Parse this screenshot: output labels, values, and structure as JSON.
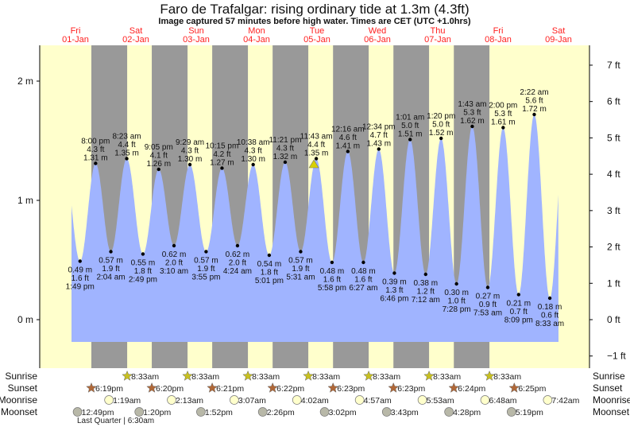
{
  "chart_data": {
    "type": "area",
    "title": "Faro de Trafalgar: rising  ordinary tide at 1.3m (4.3ft)",
    "subtitle": "Image captured 57 minutes before high water. Times are CET (UTC +1.0hrs)",
    "current_marker": {
      "day": "05-Jan",
      "time": "10:46 am",
      "m": 1.3
    },
    "left_axis": {
      "unit": "m",
      "ticks": [
        "0 m",
        "1 m",
        "2 m"
      ],
      "tick_values": [
        0,
        1,
        2
      ]
    },
    "right_axis": {
      "unit": "ft",
      "ticks": [
        "−1 ft",
        "0 ft",
        "1 ft",
        "2 ft",
        "3 ft",
        "4 ft",
        "5 ft",
        "6 ft",
        "7 ft"
      ],
      "tick_values": [
        -1,
        0,
        1,
        2,
        3,
        4,
        5,
        6,
        7
      ]
    },
    "days": [
      {
        "dow": "Fri",
        "date": "01-Jan"
      },
      {
        "dow": "Sat",
        "date": "02-Jan"
      },
      {
        "dow": "Sun",
        "date": "03-Jan"
      },
      {
        "dow": "Mon",
        "date": "04-Jan"
      },
      {
        "dow": "Tue",
        "date": "05-Jan"
      },
      {
        "dow": "Wed",
        "date": "06-Jan"
      },
      {
        "dow": "Thu",
        "date": "07-Jan"
      },
      {
        "dow": "Fri",
        "date": "08-Jan"
      },
      {
        "dow": "Sat",
        "date": "09-Jan"
      }
    ],
    "tides": [
      {
        "day": "01-Jan",
        "time": "1:49 pm",
        "type": "low",
        "m": "0.49 m",
        "ft": "1.6 ft",
        "v": 0.49
      },
      {
        "day": "01-Jan",
        "time": "8:00 pm",
        "type": "high",
        "m": "1.31 m",
        "ft": "4.3 ft",
        "v": 1.31
      },
      {
        "day": "02-Jan",
        "time": "2:04 am",
        "type": "low",
        "m": "0.57 m",
        "ft": "1.9 ft",
        "v": 0.57
      },
      {
        "day": "02-Jan",
        "time": "8:23 am",
        "type": "high",
        "m": "1.35 m",
        "ft": "4.4 ft",
        "v": 1.35
      },
      {
        "day": "02-Jan",
        "time": "2:49 pm",
        "type": "low",
        "m": "0.55 m",
        "ft": "1.8 ft",
        "v": 0.55
      },
      {
        "day": "02-Jan",
        "time": "9:05 pm",
        "type": "high",
        "m": "1.26 m",
        "ft": "4.1 ft",
        "v": 1.26
      },
      {
        "day": "03-Jan",
        "time": "3:10 am",
        "type": "low",
        "m": "0.62 m",
        "ft": "2.0 ft",
        "v": 0.62
      },
      {
        "day": "03-Jan",
        "time": "9:29 am",
        "type": "high",
        "m": "1.30 m",
        "ft": "4.3 ft",
        "v": 1.3
      },
      {
        "day": "03-Jan",
        "time": "3:55 pm",
        "type": "low",
        "m": "0.57 m",
        "ft": "1.9 ft",
        "v": 0.57
      },
      {
        "day": "03-Jan",
        "time": "10:15 pm",
        "type": "high",
        "m": "1.27 m",
        "ft": "4.2 ft",
        "v": 1.27
      },
      {
        "day": "04-Jan",
        "time": "4:24 am",
        "type": "low",
        "m": "0.62 m",
        "ft": "2.0 ft",
        "v": 0.62
      },
      {
        "day": "04-Jan",
        "time": "10:38 am",
        "type": "high",
        "m": "1.30 m",
        "ft": "4.3 ft",
        "v": 1.3
      },
      {
        "day": "04-Jan",
        "time": "5:01 pm",
        "type": "low",
        "m": "0.54 m",
        "ft": "1.8 ft",
        "v": 0.54
      },
      {
        "day": "04-Jan",
        "time": "11:21 pm",
        "type": "high",
        "m": "1.32 m",
        "ft": "4.3 ft",
        "v": 1.32
      },
      {
        "day": "05-Jan",
        "time": "5:31 am",
        "type": "low",
        "m": "0.57 m",
        "ft": "1.9 ft",
        "v": 0.57
      },
      {
        "day": "05-Jan",
        "time": "11:43 am",
        "type": "high",
        "m": "1.35 m",
        "ft": "4.4 ft",
        "v": 1.35
      },
      {
        "day": "05-Jan",
        "time": "5:58 pm",
        "type": "low",
        "m": "0.48 m",
        "ft": "1.6 ft",
        "v": 0.48
      },
      {
        "day": "06-Jan",
        "time": "12:16 am",
        "type": "high",
        "m": "1.41 m",
        "ft": "4.6 ft",
        "v": 1.41
      },
      {
        "day": "06-Jan",
        "time": "6:27 am",
        "type": "low",
        "m": "0.48 m",
        "ft": "1.6 ft",
        "v": 0.48
      },
      {
        "day": "06-Jan",
        "time": "12:34 pm",
        "type": "high",
        "m": "1.43 m",
        "ft": "4.7 ft",
        "v": 1.43
      },
      {
        "day": "06-Jan",
        "time": "6:46 pm",
        "type": "low",
        "m": "0.39 m",
        "ft": "1.3 ft",
        "v": 0.39
      },
      {
        "day": "07-Jan",
        "time": "1:01 am",
        "type": "high",
        "m": "1.51 m",
        "ft": "5.0 ft",
        "v": 1.51
      },
      {
        "day": "07-Jan",
        "time": "7:12 am",
        "type": "low",
        "m": "0.38 m",
        "ft": "1.2 ft",
        "v": 0.38
      },
      {
        "day": "07-Jan",
        "time": "1:20 pm",
        "type": "high",
        "m": "1.52 m",
        "ft": "5.0 ft",
        "v": 1.52
      },
      {
        "day": "07-Jan",
        "time": "7:28 pm",
        "type": "low",
        "m": "0.30 m",
        "ft": "1.0 ft",
        "v": 0.3
      },
      {
        "day": "08-Jan",
        "time": "1:43 am",
        "type": "high",
        "m": "1.62 m",
        "ft": "5.3 ft",
        "v": 1.62
      },
      {
        "day": "08-Jan",
        "time": "7:53 am",
        "type": "low",
        "m": "0.27 m",
        "ft": "0.9 ft",
        "v": 0.27
      },
      {
        "day": "08-Jan",
        "time": "2:00 pm",
        "type": "high",
        "m": "1.61 m",
        "ft": "5.3 ft",
        "v": 1.61
      },
      {
        "day": "08-Jan",
        "time": "8:09 pm",
        "type": "low",
        "m": "0.21 m",
        "ft": "0.7 ft",
        "v": 0.21
      },
      {
        "day": "09-Jan",
        "time": "2:22 am",
        "type": "high",
        "m": "1.72 m",
        "ft": "5.6 ft",
        "v": 1.72
      },
      {
        "day": "09-Jan",
        "time": "8:33 am",
        "type": "low",
        "m": "0.18 m",
        "ft": "0.6 ft",
        "v": 0.18
      }
    ],
    "astro": {
      "labels": {
        "sunrise": "Sunrise",
        "sunset": "Sunset",
        "moonrise": "Moonrise",
        "moonset": "Moonset"
      },
      "sunrise": [
        {
          "day": "02-Jan",
          "time": "8:33am"
        },
        {
          "day": "03-Jan",
          "time": "8:33am"
        },
        {
          "day": "04-Jan",
          "time": "8:33am"
        },
        {
          "day": "05-Jan",
          "time": "8:33am"
        },
        {
          "day": "06-Jan",
          "time": "8:33am"
        },
        {
          "day": "07-Jan",
          "time": "8:33am"
        },
        {
          "day": "08-Jan",
          "time": "8:33am"
        }
      ],
      "sunset": [
        {
          "day": "01-Jan",
          "time": "6:19pm"
        },
        {
          "day": "02-Jan",
          "time": "6:20pm"
        },
        {
          "day": "03-Jan",
          "time": "6:21pm"
        },
        {
          "day": "04-Jan",
          "time": "6:22pm"
        },
        {
          "day": "05-Jan",
          "time": "6:23pm"
        },
        {
          "day": "06-Jan",
          "time": "6:23pm"
        },
        {
          "day": "07-Jan",
          "time": "6:24pm"
        },
        {
          "day": "08-Jan",
          "time": "6:25pm"
        }
      ],
      "moonrise": [
        {
          "day": "02-Jan",
          "time": "1:19am"
        },
        {
          "day": "03-Jan",
          "time": "2:13am"
        },
        {
          "day": "04-Jan",
          "time": "3:07am"
        },
        {
          "day": "05-Jan",
          "time": "4:02am"
        },
        {
          "day": "06-Jan",
          "time": "4:57am"
        },
        {
          "day": "07-Jan",
          "time": "5:53am"
        },
        {
          "day": "08-Jan",
          "time": "6:48am"
        },
        {
          "day": "09-Jan",
          "time": "7:42am"
        }
      ],
      "moonset": [
        {
          "day": "01-Jan",
          "time": "12:49pm"
        },
        {
          "day": "02-Jan",
          "time": "1:20pm"
        },
        {
          "day": "03-Jan",
          "time": "1:52pm"
        },
        {
          "day": "04-Jan",
          "time": "2:26pm"
        },
        {
          "day": "05-Jan",
          "time": "3:02pm"
        },
        {
          "day": "06-Jan",
          "time": "3:43pm"
        },
        {
          "day": "07-Jan",
          "time": "4:28pm"
        },
        {
          "day": "08-Jan",
          "time": "5:19pm"
        }
      ],
      "moon_phase": "Last Quarter | 6:30am"
    },
    "colors": {
      "day": "#ffffcc",
      "night": "#999999",
      "water": "#a0b4ff",
      "day_label": "#ff2020",
      "sunrise": "#c8c020",
      "sunset": "#b06838",
      "moonrise": "#ffffcc",
      "moonset": "#b8b8a8"
    }
  }
}
